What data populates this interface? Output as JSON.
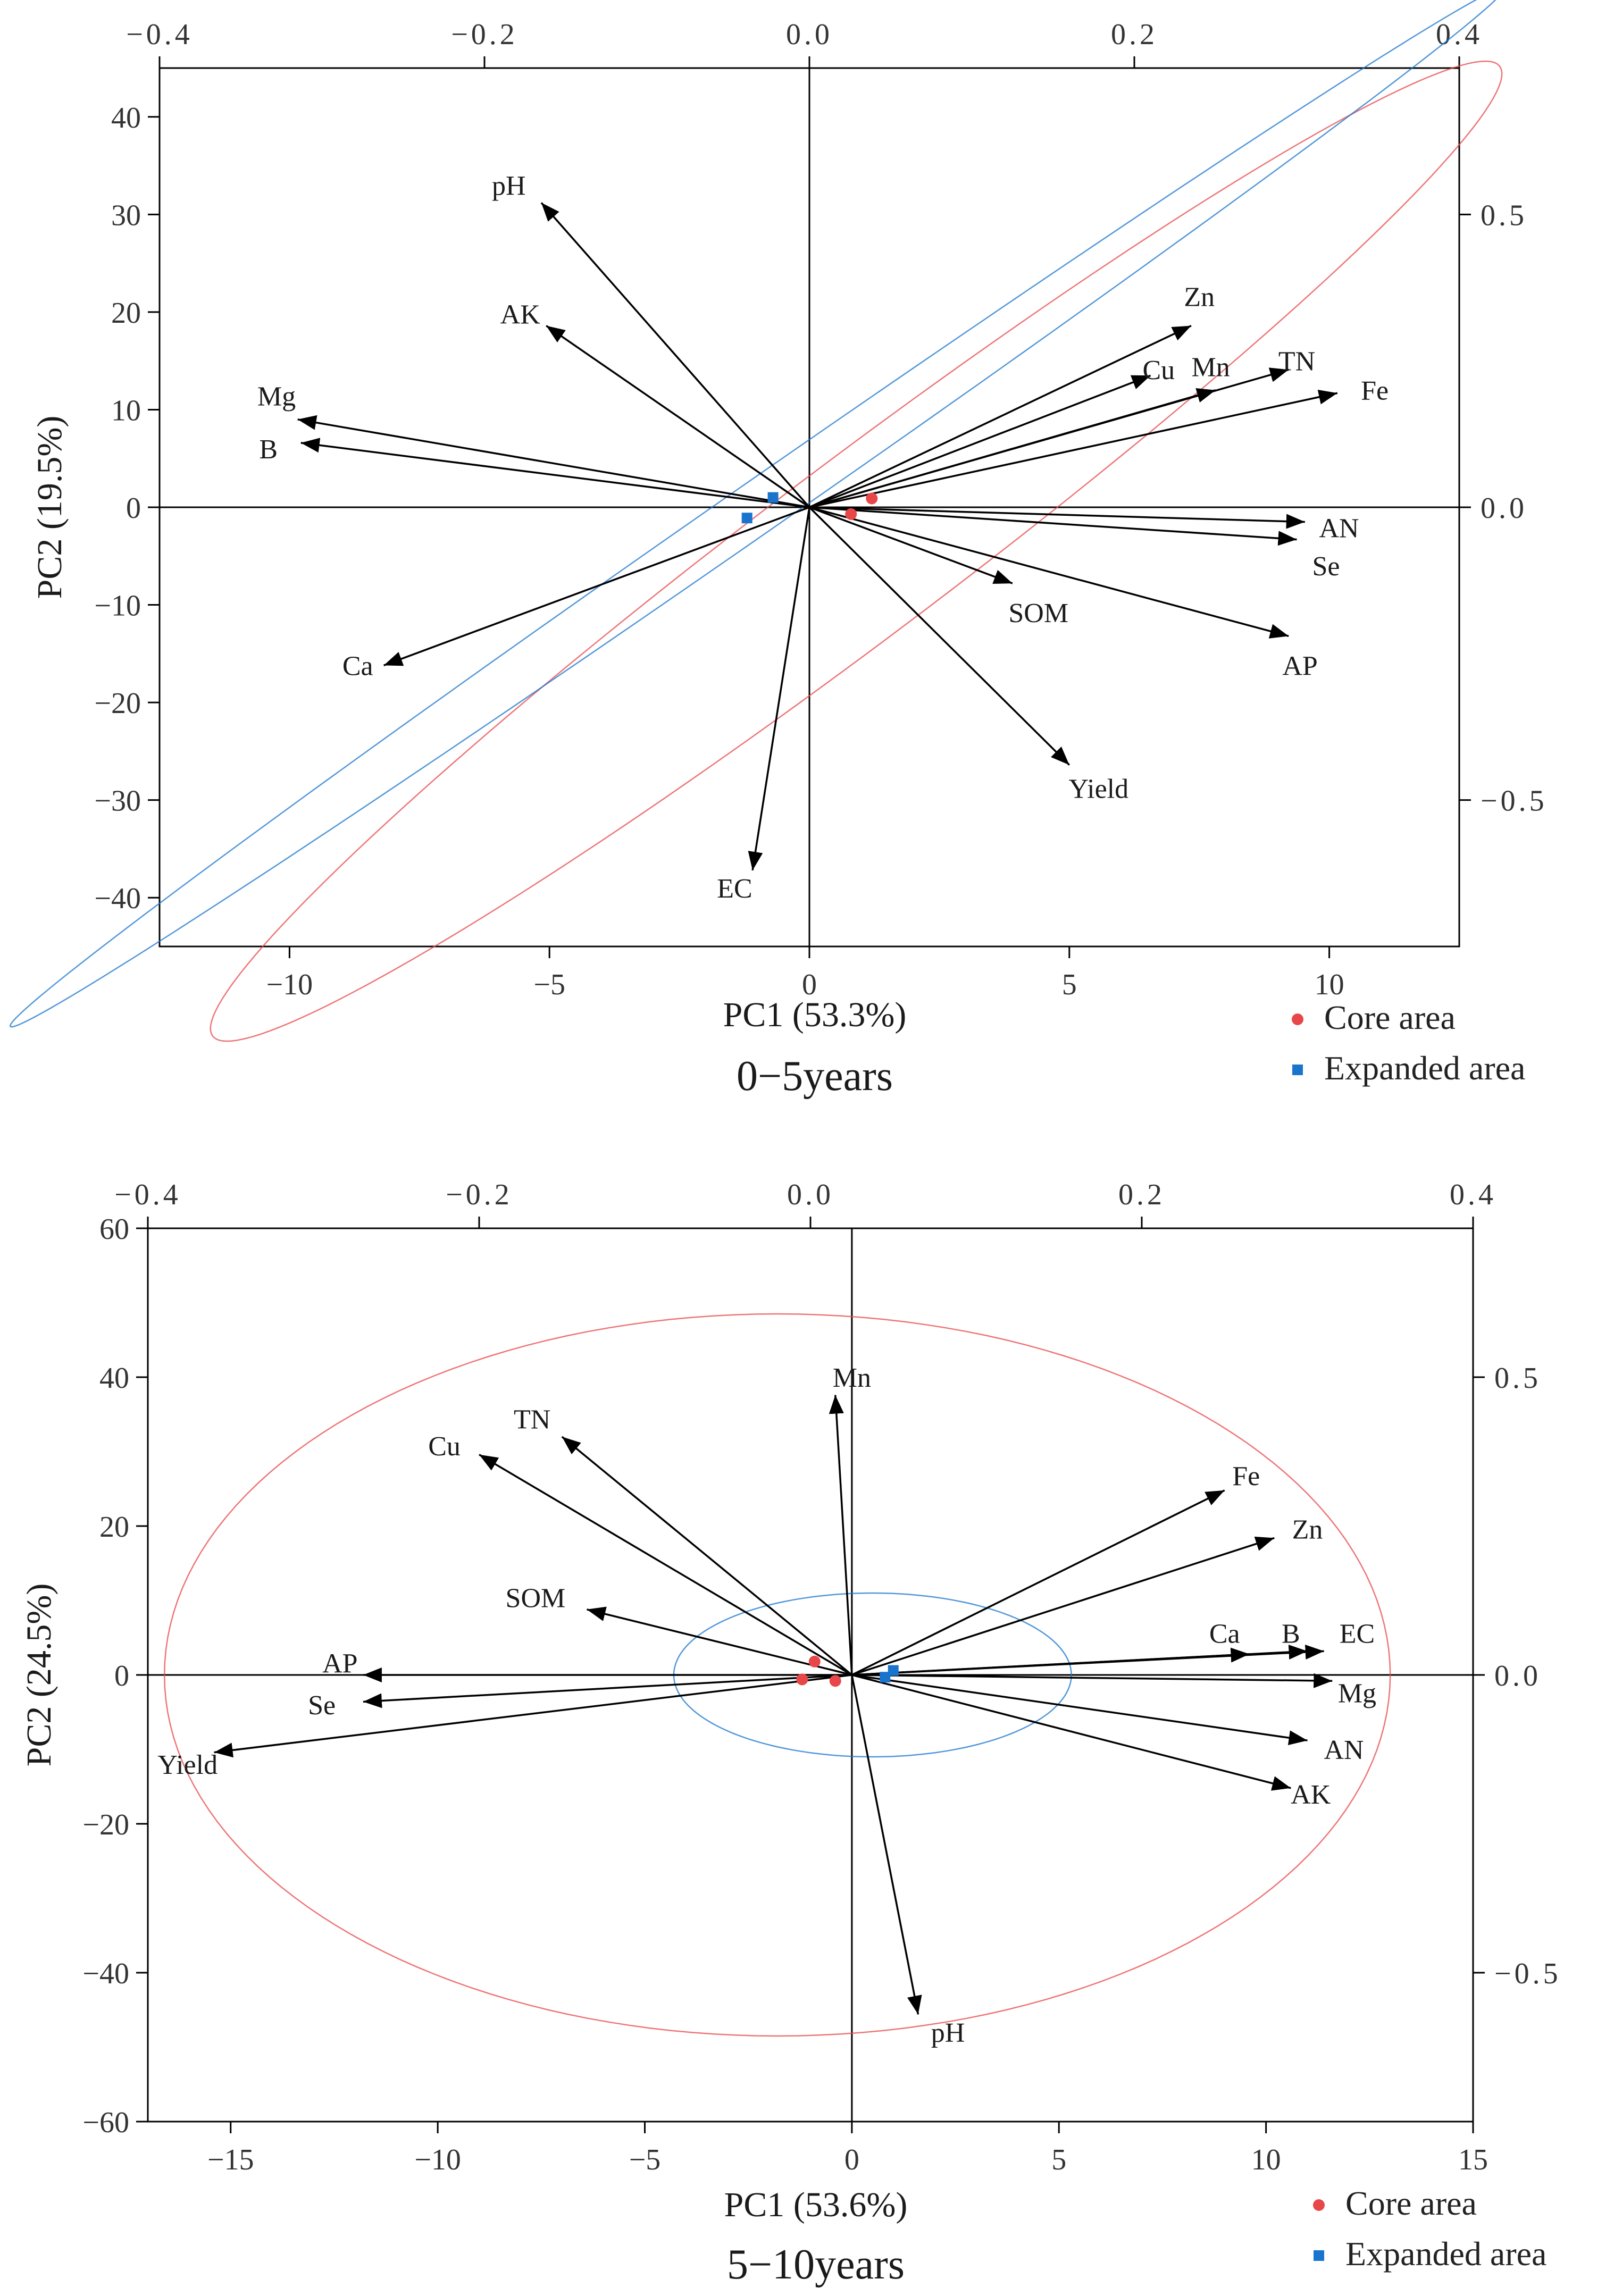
{
  "chart_data": [
    {
      "type": "scatter",
      "subtitle": "0−5years",
      "xlabel": "PC1 (53.3%)",
      "ylabel": "PC2 (19.5%)",
      "xlim": [
        -12.5,
        12.5
      ],
      "ylim": [
        -45,
        45
      ],
      "x_ticks": [
        -10,
        -5,
        0,
        5,
        10
      ],
      "x_tick_labels": [
        "−10",
        "−5",
        "0",
        "5",
        "10"
      ],
      "y_ticks": [
        -40,
        -30,
        -20,
        -10,
        0,
        10,
        20,
        30,
        40
      ],
      "y_tick_labels": [
        "−40",
        "−30",
        "−20",
        "−10",
        "0",
        "10",
        "20",
        "30",
        "40"
      ],
      "top_lim": [
        -0.4,
        0.4
      ],
      "top_ticks": [
        -0.4,
        -0.2,
        0.0,
        0.2,
        0.4
      ],
      "top_tick_labels": [
        "−0.4",
        "−0.2",
        "0.0",
        "0.2",
        "0.4"
      ],
      "right_lim": [
        -0.75,
        0.75
      ],
      "right_ticks": [
        -0.5,
        0.0,
        0.5
      ],
      "right_tick_labels": [
        "−0.5",
        "0.0",
        "0.5"
      ],
      "loadings": [
        {
          "name": "pH",
          "x": -0.165,
          "y": 0.52,
          "lx": -0.185,
          "ly": 0.55
        },
        {
          "name": "AK",
          "x": -0.162,
          "y": 0.31,
          "lx": -0.178,
          "ly": 0.33
        },
        {
          "name": "Mg",
          "x": -0.315,
          "y": 0.15,
          "lx": -0.328,
          "ly": 0.19
        },
        {
          "name": "B",
          "x": -0.313,
          "y": 0.11,
          "lx": -0.333,
          "ly": 0.1
        },
        {
          "name": "Ca",
          "x": -0.262,
          "y": -0.27,
          "lx": -0.278,
          "ly": -0.27
        },
        {
          "name": "EC",
          "x": -0.035,
          "y": -0.62,
          "lx": -0.046,
          "ly": -0.65
        },
        {
          "name": "Yield",
          "x": 0.16,
          "y": -0.44,
          "lx": 0.178,
          "ly": -0.48
        },
        {
          "name": "SOM",
          "x": 0.125,
          "y": -0.13,
          "lx": 0.141,
          "ly": -0.18
        },
        {
          "name": "AP",
          "x": 0.295,
          "y": -0.22,
          "lx": 0.302,
          "ly": -0.27
        },
        {
          "name": "Se",
          "x": 0.3,
          "y": -0.055,
          "lx": 0.318,
          "ly": -0.1
        },
        {
          "name": "AN",
          "x": 0.305,
          "y": -0.025,
          "lx": 0.326,
          "ly": -0.035
        },
        {
          "name": "Fe",
          "x": 0.325,
          "y": 0.195,
          "lx": 0.348,
          "ly": 0.2
        },
        {
          "name": "TN",
          "x": 0.295,
          "y": 0.235,
          "lx": 0.3,
          "ly": 0.25
        },
        {
          "name": "Mn",
          "x": 0.25,
          "y": 0.2,
          "lx": 0.247,
          "ly": 0.24
        },
        {
          "name": "Cu",
          "x": 0.21,
          "y": 0.225,
          "lx": 0.215,
          "ly": 0.235
        },
        {
          "name": "Zn",
          "x": 0.235,
          "y": 0.31,
          "lx": 0.24,
          "ly": 0.36
        }
      ],
      "groups": [
        {
          "name": "Core area",
          "color": "#e8474a",
          "marker": "circle",
          "points": [
            [
              0.8,
              -0.7
            ],
            [
              1.2,
              0.9
            ]
          ],
          "ellipse": {
            "cx": 0.9,
            "cy": -4.5,
            "rx": 15.5,
            "ry": 1.7,
            "angle": 37
          }
        },
        {
          "name": "Expanded area",
          "color": "#1874cd",
          "marker": "square",
          "points": [
            [
              -0.7,
              1.0
            ],
            [
              -1.2,
              -1.1
            ]
          ],
          "ellipse": {
            "cx": -1.0,
            "cy": 0.0,
            "rx": 17.5,
            "ry": 0.5,
            "angle": 34.8
          }
        }
      ],
      "legend": [
        {
          "label": "Core area",
          "color": "#e8474a",
          "marker": "circle"
        },
        {
          "label": "Expanded area",
          "color": "#1874cd",
          "marker": "square"
        }
      ]
    },
    {
      "type": "scatter",
      "subtitle": "5−10years",
      "xlabel": "PC1 (53.6%)",
      "ylabel": "PC2 (24.5%)",
      "xlim": [
        -17,
        15
      ],
      "ylim": [
        -60,
        60
      ],
      "x_ticks": [
        -15,
        -10,
        -5,
        0,
        5,
        10,
        15
      ],
      "x_tick_labels": [
        "−15",
        "−10",
        "−5",
        "0",
        "5",
        "10",
        "15"
      ],
      "y_ticks": [
        -60,
        -40,
        -20,
        0,
        20,
        40,
        60
      ],
      "y_tick_labels": [
        "−60",
        "−40",
        "−20",
        "0",
        "20",
        "40",
        "60"
      ],
      "top_lim": [
        -0.4,
        0.4
      ],
      "top_ticks": [
        -0.4,
        -0.2,
        0.0,
        0.2,
        0.4
      ],
      "top_tick_labels": [
        "−0.4",
        "−0.2",
        "0.0",
        "0.2",
        "0.4"
      ],
      "right_lim": [
        -0.75,
        0.75
      ],
      "right_ticks": [
        -0.5,
        0.0,
        0.5
      ],
      "right_tick_labels": [
        "−0.5",
        "0.0",
        "0.5"
      ],
      "loadings": [
        {
          "name": "Mn",
          "x": 0.015,
          "y": 0.47,
          "lx": 0.025,
          "ly": 0.5
        },
        {
          "name": "TN",
          "x": -0.15,
          "y": 0.4,
          "lx": -0.168,
          "ly": 0.43
        },
        {
          "name": "Cu",
          "x": -0.2,
          "y": 0.37,
          "lx": -0.221,
          "ly": 0.385
        },
        {
          "name": "SOM",
          "x": -0.135,
          "y": 0.11,
          "lx": -0.166,
          "ly": 0.13
        },
        {
          "name": "AP",
          "x": -0.27,
          "y": 0.0,
          "lx": -0.284,
          "ly": 0.02
        },
        {
          "name": "Se",
          "x": -0.27,
          "y": -0.045,
          "lx": -0.295,
          "ly": -0.05
        },
        {
          "name": "Yield",
          "x": -0.36,
          "y": -0.13,
          "lx": -0.376,
          "ly": -0.15
        },
        {
          "name": "pH",
          "x": 0.065,
          "y": -0.57,
          "lx": 0.083,
          "ly": -0.6
        },
        {
          "name": "AK",
          "x": 0.29,
          "y": -0.19,
          "lx": 0.302,
          "ly": -0.2
        },
        {
          "name": "AN",
          "x": 0.3,
          "y": -0.11,
          "lx": 0.322,
          "ly": -0.125
        },
        {
          "name": "Mg",
          "x": 0.315,
          "y": -0.01,
          "lx": 0.33,
          "ly": -0.03
        },
        {
          "name": "EC",
          "x": 0.31,
          "y": 0.04,
          "lx": 0.33,
          "ly": 0.07
        },
        {
          "name": "B",
          "x": 0.3,
          "y": 0.04,
          "lx": 0.29,
          "ly": 0.07
        },
        {
          "name": "Ca",
          "x": 0.265,
          "y": 0.035,
          "lx": 0.25,
          "ly": 0.07
        },
        {
          "name": "Zn",
          "x": 0.28,
          "y": 0.23,
          "lx": 0.3,
          "ly": 0.245
        },
        {
          "name": "Fe",
          "x": 0.25,
          "y": 0.31,
          "lx": 0.263,
          "ly": 0.335
        }
      ],
      "groups": [
        {
          "name": "Core area",
          "color": "#e8474a",
          "marker": "circle",
          "points": [
            [
              -0.9,
              1.8
            ],
            [
              -1.2,
              -0.6
            ],
            [
              -0.4,
              -0.8
            ]
          ],
          "ellipse": {
            "cx": -1.8,
            "cy": 0.0,
            "rx": 14.8,
            "ry": 48.5,
            "angle": 0
          }
        },
        {
          "name": "Expanded area",
          "color": "#1874cd",
          "marker": "square",
          "points": [
            [
              1.0,
              0.6
            ],
            [
              0.8,
              -0.3
            ]
          ],
          "ellipse": {
            "cx": 0.5,
            "cy": 0.0,
            "rx": 4.8,
            "ry": 11.0,
            "angle": 0
          }
        }
      ],
      "legend": [
        {
          "label": "Core area",
          "color": "#e8474a",
          "marker": "circle"
        },
        {
          "label": "Expanded area",
          "color": "#1874cd",
          "marker": "square"
        }
      ]
    }
  ]
}
